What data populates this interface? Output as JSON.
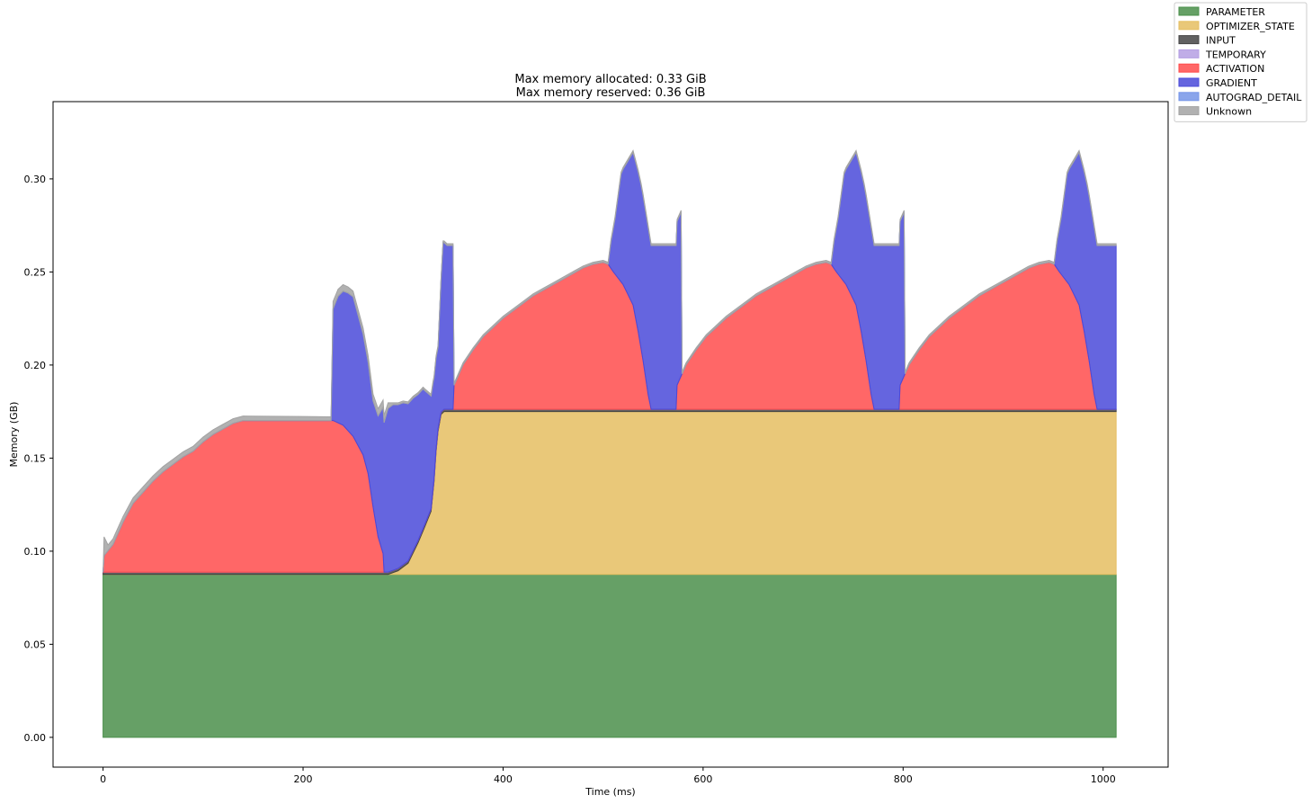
{
  "chart_data": {
    "type": "area",
    "stacked": true,
    "title": [
      "Max memory allocated: 0.33 GiB",
      "Max memory reserved: 0.36 GiB"
    ],
    "xlabel": "Time (ms)",
    "ylabel": "Memory (GB)",
    "xlim": [
      -50,
      1065
    ],
    "ylim": [
      -0.016,
      0.3415
    ],
    "xticks": [
      0,
      200,
      400,
      600,
      800,
      1000
    ],
    "yticks": [
      0.0,
      0.05,
      0.1,
      0.15,
      0.2,
      0.25,
      0.3
    ],
    "grid": false,
    "legend_position": "outside-top-right",
    "series": [
      {
        "name": "PARAMETER",
        "color": "#4b8f4b",
        "points": [
          [
            0,
            0.0875
          ],
          [
            1013,
            0.0875
          ]
        ]
      },
      {
        "name": "OPTIMIZER_STATE",
        "color": "#e5be62",
        "points": [
          [
            0,
            0
          ],
          [
            285,
            0
          ],
          [
            295,
            0.002
          ],
          [
            305,
            0.006
          ],
          [
            315,
            0.017
          ],
          [
            322,
            0.026
          ],
          [
            328,
            0.034
          ],
          [
            331,
            0.05
          ],
          [
            333,
            0.066
          ],
          [
            335,
            0.077
          ],
          [
            338,
            0.086
          ],
          [
            341,
            0.0875
          ],
          [
            1013,
            0.0875
          ]
        ]
      },
      {
        "name": "INPUT",
        "color": "#454545",
        "points": [
          [
            0,
            0.0012
          ],
          [
            1013,
            0.0012
          ]
        ]
      },
      {
        "name": "TEMPORARY",
        "color": "#b59fe3",
        "points": [
          [
            0,
            0
          ],
          [
            1013,
            0
          ]
        ]
      },
      {
        "name": "ACTIVATION",
        "color": "#ff4c4c",
        "points": [
          [
            0,
            0
          ],
          [
            1,
            0.009
          ],
          [
            10,
            0.015
          ],
          [
            20,
            0.027
          ],
          [
            30,
            0.037
          ],
          [
            40,
            0.043
          ],
          [
            50,
            0.049
          ],
          [
            60,
            0.054
          ],
          [
            70,
            0.058
          ],
          [
            80,
            0.062
          ],
          [
            90,
            0.065
          ],
          [
            100,
            0.07
          ],
          [
            110,
            0.074
          ],
          [
            120,
            0.077
          ],
          [
            130,
            0.08
          ],
          [
            140,
            0.0815
          ],
          [
            150,
            0.0815
          ],
          [
            200,
            0.0815
          ],
          [
            230,
            0.0815
          ],
          [
            240,
            0.079
          ],
          [
            250,
            0.073
          ],
          [
            260,
            0.063
          ],
          [
            265,
            0.053
          ],
          [
            270,
            0.035
          ],
          [
            275,
            0.019
          ],
          [
            280,
            0.01
          ],
          [
            281,
            0
          ],
          [
            350,
            0
          ],
          [
            351,
            0.013
          ],
          [
            360,
            0.024
          ],
          [
            370,
            0.032
          ],
          [
            380,
            0.039
          ],
          [
            390,
            0.044
          ],
          [
            400,
            0.049
          ],
          [
            410,
            0.053
          ],
          [
            420,
            0.057
          ],
          [
            430,
            0.061
          ],
          [
            440,
            0.064
          ],
          [
            450,
            0.067
          ],
          [
            460,
            0.07
          ],
          [
            470,
            0.073
          ],
          [
            480,
            0.076
          ],
          [
            490,
            0.078
          ],
          [
            500,
            0.079
          ],
          [
            505,
            0.078
          ],
          [
            510,
            0.074
          ],
          [
            520,
            0.067
          ],
          [
            530,
            0.056
          ],
          [
            535,
            0.042
          ],
          [
            540,
            0.026
          ],
          [
            545,
            0.008
          ],
          [
            548,
            0
          ],
          [
            573,
            0
          ],
          [
            574,
            0.013
          ],
          [
            583,
            0.024
          ],
          [
            593,
            0.032
          ],
          [
            603,
            0.039
          ],
          [
            613,
            0.044
          ],
          [
            623,
            0.049
          ],
          [
            633,
            0.053
          ],
          [
            643,
            0.057
          ],
          [
            653,
            0.061
          ],
          [
            663,
            0.064
          ],
          [
            673,
            0.067
          ],
          [
            683,
            0.07
          ],
          [
            693,
            0.073
          ],
          [
            703,
            0.076
          ],
          [
            713,
            0.078
          ],
          [
            723,
            0.079
          ],
          [
            728,
            0.078
          ],
          [
            733,
            0.074
          ],
          [
            743,
            0.067
          ],
          [
            753,
            0.056
          ],
          [
            758,
            0.042
          ],
          [
            763,
            0.026
          ],
          [
            768,
            0.008
          ],
          [
            771,
            0
          ],
          [
            796,
            0
          ],
          [
            797,
            0.013
          ],
          [
            806,
            0.024
          ],
          [
            816,
            0.032
          ],
          [
            826,
            0.039
          ],
          [
            836,
            0.044
          ],
          [
            846,
            0.049
          ],
          [
            856,
            0.053
          ],
          [
            866,
            0.057
          ],
          [
            876,
            0.061
          ],
          [
            886,
            0.064
          ],
          [
            896,
            0.067
          ],
          [
            906,
            0.07
          ],
          [
            916,
            0.073
          ],
          [
            926,
            0.076
          ],
          [
            936,
            0.078
          ],
          [
            946,
            0.079
          ],
          [
            951,
            0.078
          ],
          [
            956,
            0.074
          ],
          [
            966,
            0.067
          ],
          [
            976,
            0.056
          ],
          [
            981,
            0.042
          ],
          [
            986,
            0.026
          ],
          [
            991,
            0.008
          ],
          [
            994,
            0
          ],
          [
            1013,
            0
          ]
        ]
      },
      {
        "name": "GRADIENT",
        "color": "#4a4ad9",
        "points": [
          [
            0,
            0
          ],
          [
            228,
            0
          ],
          [
            230,
            0.06
          ],
          [
            235,
            0.068
          ],
          [
            240,
            0.072
          ],
          [
            245,
            0.074
          ],
          [
            250,
            0.075
          ],
          [
            255,
            0.07
          ],
          [
            260,
            0.065
          ],
          [
            265,
            0.06
          ],
          [
            270,
            0.057
          ],
          [
            275,
            0.065
          ],
          [
            280,
            0.0785
          ],
          [
            285,
            0.088
          ],
          [
            290,
            0.089
          ],
          [
            300,
            0.087
          ],
          [
            310,
            0.082
          ],
          [
            320,
            0.075
          ],
          [
            330,
            0.057
          ],
          [
            335,
            0.044
          ],
          [
            340,
            0.09
          ],
          [
            344,
            0.088
          ],
          [
            350,
            0.088
          ],
          [
            351,
            0
          ],
          [
            505,
            0
          ],
          [
            508,
            0.015
          ],
          [
            512,
            0.03
          ],
          [
            518,
            0.058
          ],
          [
            524,
            0.07
          ],
          [
            530,
            0.082
          ],
          [
            538,
            0.088
          ],
          [
            545,
            0.09
          ],
          [
            548,
            0.088
          ],
          [
            578,
            0.088
          ],
          [
            579,
            0
          ],
          [
            728,
            0
          ],
          [
            731,
            0.015
          ],
          [
            735,
            0.03
          ],
          [
            741,
            0.058
          ],
          [
            747,
            0.07
          ],
          [
            753,
            0.082
          ],
          [
            761,
            0.088
          ],
          [
            768,
            0.09
          ],
          [
            771,
            0.088
          ],
          [
            801,
            0.088
          ],
          [
            802,
            0
          ],
          [
            951,
            0
          ],
          [
            954,
            0.015
          ],
          [
            958,
            0.03
          ],
          [
            964,
            0.058
          ],
          [
            970,
            0.07
          ],
          [
            976,
            0.082
          ],
          [
            984,
            0.088
          ],
          [
            991,
            0.09
          ],
          [
            994,
            0.088
          ],
          [
            1013,
            0.088
          ],
          [
            1013,
            0
          ]
        ]
      },
      {
        "name": "AUTOGRAD_DETAIL",
        "color": "#7595e8",
        "points": [
          [
            0,
            0
          ],
          [
            1013,
            0
          ]
        ]
      },
      {
        "name": "Unknown",
        "color": "#a3a3a3",
        "points": [
          [
            0,
            0
          ],
          [
            1,
            0.01
          ],
          [
            5,
            0.003
          ],
          [
            228,
            0.002
          ],
          [
            230,
            0.004
          ],
          [
            250,
            0.003
          ],
          [
            280,
            0.004
          ],
          [
            285,
            0.003
          ],
          [
            290,
            0.001
          ],
          [
            300,
            0.001
          ],
          [
            1013,
            0.001
          ]
        ]
      }
    ],
    "peaks": {
      "note_hidden": false,
      "values": [
        [
          0,
          0.0875
        ]
      ]
    }
  }
}
